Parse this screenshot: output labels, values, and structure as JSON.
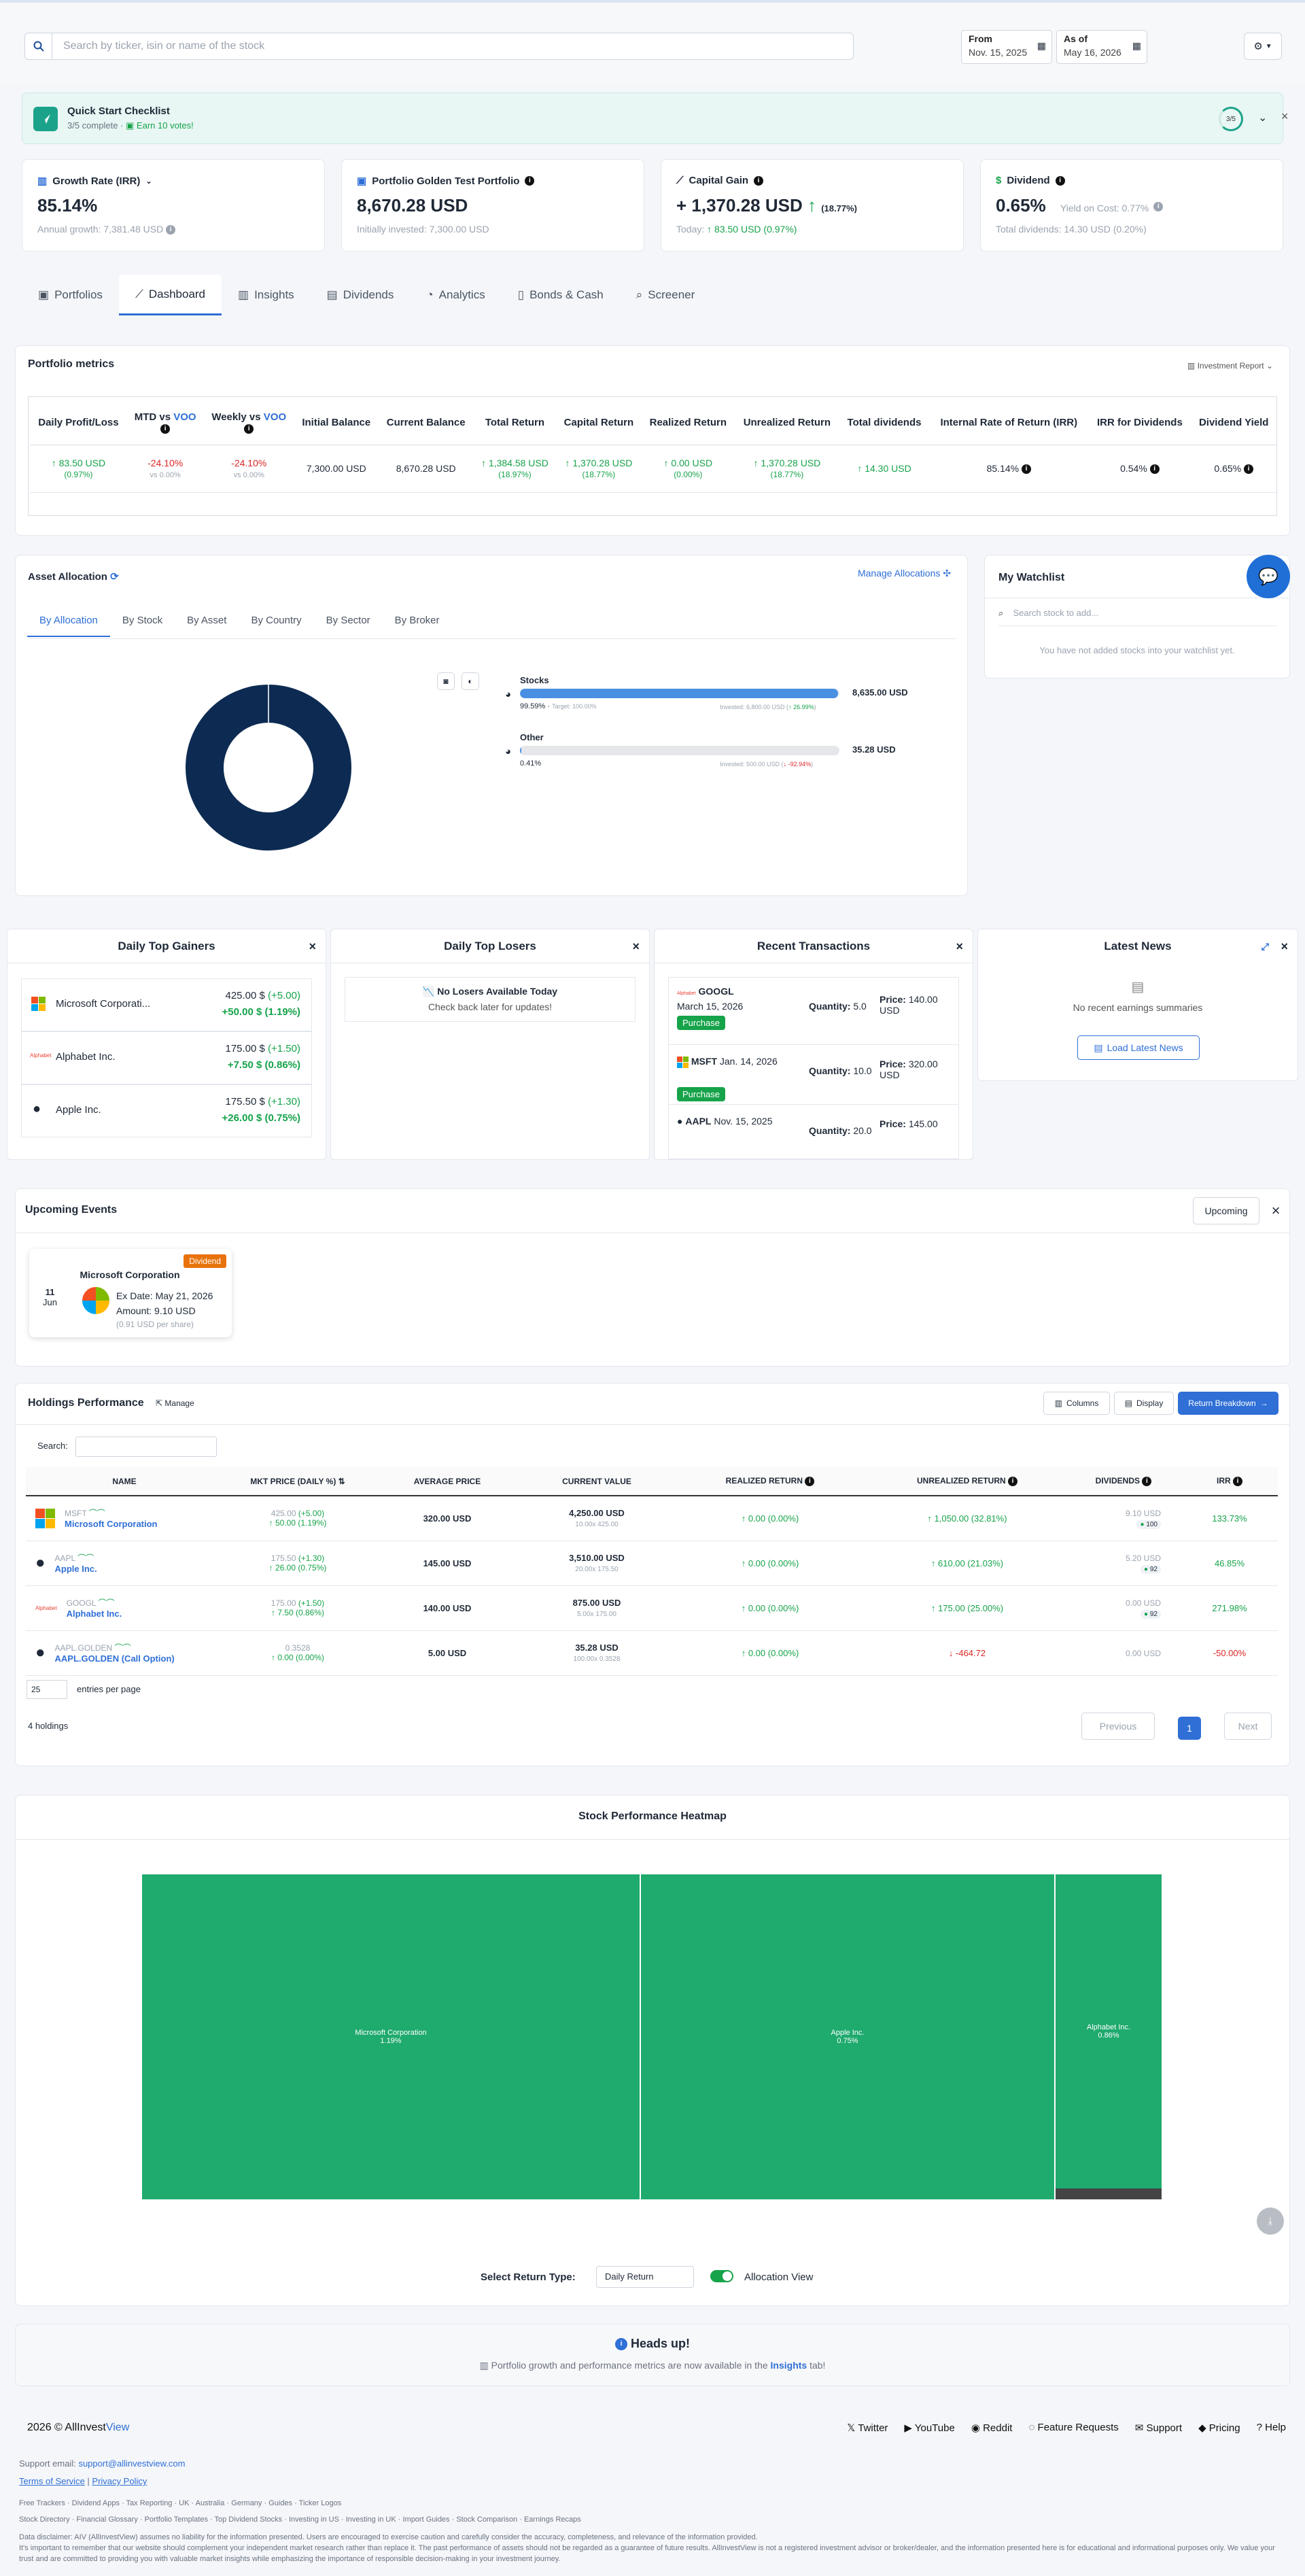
{
  "search": {
    "placeholder": "Search by ticker, isin or name of the stock"
  },
  "dates": {
    "from_label": "From",
    "from_value": "Nov. 15, 2025",
    "asof_label": "As of",
    "asof_value": "May 16, 2026"
  },
  "quickstart": {
    "title": "Quick Start Checklist",
    "complete": "3/5 complete",
    "earn": "Earn 10 votes!",
    "progress": "3/5"
  },
  "stats": [
    {
      "title": "Growth Rate (IRR)",
      "value": "85.14%",
      "sub": "Annual growth: 7,381.48 USD"
    },
    {
      "title": "Portfolio Golden Test Portfolio",
      "value": "8,670.28 USD",
      "sub": "Initially invested: 7,300.00 USD"
    },
    {
      "title": "Capital Gain",
      "value": "+ 1,370.28 USD",
      "value_pct": "(18.77%)",
      "sub_label": "Today:",
      "sub": "83.50 USD (0.97%)"
    },
    {
      "title": "Dividend",
      "value": "0.65%",
      "value_note": "Yield on Cost: 0.77%",
      "sub": "Total dividends: 14.30 USD (0.20%)"
    }
  ],
  "tabs": [
    "Portfolios",
    "Dashboard",
    "Insights",
    "Dividends",
    "Analytics",
    "Bonds & Cash",
    "Screener"
  ],
  "metrics": {
    "title": "Portfolio metrics",
    "report": "Investment Report",
    "headers": [
      "Daily Profit/Loss",
      "MTD vs VOO",
      "Weekly vs VOO",
      "Initial Balance",
      "Current Balance",
      "Total Return",
      "Capital Return",
      "Realized Return",
      "Unrealized Return",
      "Total dividends",
      "Internal Rate of Return (IRR)",
      "IRR for Dividends",
      "Dividend Yield"
    ],
    "daily": "83.50 USD",
    "daily_pct": "(0.97%)",
    "mtd": "-24.10%",
    "mtd_vs": "vs 0.00%",
    "weekly": "-24.10%",
    "weekly_vs": "vs 0.00%",
    "initial": "7,300.00 USD",
    "current": "8,670.28 USD",
    "total": "1,384.58 USD",
    "total_pct": "(18.97%)",
    "capital": "1,370.28 USD",
    "capital_pct": "(18.77%)",
    "realized": "0.00 USD",
    "realized_pct": "(0.00%)",
    "unrealized": "1,370.28 USD",
    "unrealized_pct": "(18.77%)",
    "dividends": "14.30 USD",
    "irr": "85.14%",
    "irr_div": "0.54%",
    "yield": "0.65%"
  },
  "allocation": {
    "title": "Asset Allocation",
    "manage": "Manage Allocations",
    "tabs": [
      "By Allocation",
      "By Stock",
      "By Asset",
      "By Country",
      "By Sector",
      "By Broker"
    ],
    "items": [
      {
        "name": "Stocks",
        "value": "8,635.00 USD",
        "pct": "99.59%",
        "target": "Target: 100.00%",
        "invested": "Invested: 6,800.00 USD (",
        "change": "26.99%",
        "fill": 99.59
      },
      {
        "name": "Other",
        "value": "35.28 USD",
        "pct": "0.41%",
        "invested": "Invested: 500.00 USD (",
        "change": "-92.94%",
        "fill": 0.41
      }
    ]
  },
  "watchlist": {
    "title": "My Watchlist",
    "placeholder": "Search stock to add...",
    "empty": "You have not added stocks into your watchlist yet."
  },
  "gainers": {
    "title": "Daily Top Gainers",
    "items": [
      {
        "name": "Microsoft Corporati...",
        "price": "425.00 $",
        "chg": "(+5.00)",
        "total": "+50.00 $",
        "pct": "(1.19%)"
      },
      {
        "name": "Alphabet Inc.",
        "price": "175.00 $",
        "chg": "(+1.50)",
        "total": "+7.50 $",
        "pct": "(0.86%)"
      },
      {
        "name": "Apple Inc.",
        "price": "175.50 $",
        "chg": "(+1.30)",
        "total": "+26.00 $",
        "pct": "(0.75%)"
      }
    ]
  },
  "losers": {
    "title": "Daily Top Losers",
    "empty": "No Losers Available Today",
    "sub": "Check back later for updates!"
  },
  "transactions": {
    "title": "Recent Transactions",
    "items": [
      {
        "ticker": "GOOGL",
        "date": "March 15, 2026",
        "type": "Purchase",
        "qty_label": "Quantity:",
        "qty": "5.0",
        "price_label": "Price:",
        "price": "140.00",
        "cur": "USD"
      },
      {
        "ticker": "MSFT",
        "date": "Jan. 14, 2026",
        "type": "Purchase",
        "qty_label": "Quantity:",
        "qty": "10.0",
        "price_label": "Price:",
        "price": "320.00",
        "cur": "USD"
      },
      {
        "ticker": "AAPL",
        "date": "Nov. 15, 2025",
        "qty_label": "Quantity:",
        "qty": "20.0",
        "price_label": "Price:",
        "price": "145.00"
      }
    ]
  },
  "news": {
    "title": "Latest News",
    "empty": "No recent earnings summaries",
    "button": "Load Latest News"
  },
  "events": {
    "title": "Upcoming Events",
    "filter": "Upcoming",
    "badge": "Dividend",
    "day": "11",
    "month": "Jun",
    "company": "Microsoft Corporation",
    "ex_date": "Ex Date: May 21, 2026",
    "amount": "Amount: 9.10 USD",
    "per_share": "(0.91 USD per share)"
  },
  "holdings": {
    "title": "Holdings Performance",
    "manage": "Manage",
    "columns": "Columns",
    "display": "Display",
    "breakdown": "Return Breakdown",
    "search_label": "Search:",
    "headers": [
      "NAME",
      "MKT PRICE (DAILY %)",
      "AVERAGE PRICE",
      "CURRENT VALUE",
      "REALIZED RETURN",
      "UNREALIZED RETURN",
      "DIVIDENDS",
      "IRR"
    ],
    "rows": [
      {
        "ticker": "MSFT",
        "name": "Microsoft Corporation",
        "price": "425.00",
        "price_chg": "(+5.00)",
        "daily": "50.00 (1.19%)",
        "avg": "320.00 USD",
        "value": "4,250.00 USD",
        "value_sub": "10.00x 425.00",
        "realized": "0.00 (0.00%)",
        "unrealized": "1,050.00 (32.81%)",
        "div": "9.10 USD",
        "div_badge": "100",
        "irr": "133.73%"
      },
      {
        "ticker": "AAPL",
        "name": "Apple Inc.",
        "price": "175.50",
        "price_chg": "(+1.30)",
        "daily": "26.00 (0.75%)",
        "avg": "145.00 USD",
        "value": "3,510.00 USD",
        "value_sub": "20.00x 175.50",
        "realized": "0.00 (0.00%)",
        "unrealized": "610.00 (21.03%)",
        "div": "5.20 USD",
        "div_badge": "92",
        "irr": "46.85%"
      },
      {
        "ticker": "GOOGL",
        "name": "Alphabet Inc.",
        "price": "175.00",
        "price_chg": "(+1.50)",
        "daily": "7.50 (0.86%)",
        "avg": "140.00 USD",
        "value": "875.00 USD",
        "value_sub": "5.00x 175.00",
        "realized": "0.00 (0.00%)",
        "unrealized": "175.00 (25.00%)",
        "div": "0.00 USD",
        "div_badge": "92",
        "irr": "271.98%"
      },
      {
        "ticker": "AAPL.GOLDEN",
        "name": "AAPL.GOLDEN (Call Option)",
        "price": "0.3528",
        "price_chg": "",
        "daily": "0.00 (0.00%)",
        "avg": "5.00 USD",
        "value": "35.28 USD",
        "value_sub": "100.00x 0.3528",
        "realized": "0.00 (0.00%)",
        "unrealized": "-464.72",
        "div": "0.00 USD",
        "div_badge": "",
        "irr": "-50.00%"
      }
    ],
    "entries": "25",
    "entries_label": "entries per page",
    "count": "4 holdings",
    "prev": "Previous",
    "page": "1",
    "next": "Next"
  },
  "heatmap": {
    "title": "Stock Performance Heatmap",
    "cells": [
      {
        "name": "Microsoft Corporation",
        "pct": "1.19%"
      },
      {
        "name": "Apple Inc.",
        "pct": "0.75%"
      },
      {
        "name": "Alphabet Inc.",
        "pct": "0.86%"
      }
    ],
    "return_label": "Select Return Type:",
    "return_value": "Daily Return",
    "toggle_label": "Allocation View"
  },
  "headsup": {
    "title": "Heads up!",
    "text_pre": "Portfolio growth and performance metrics are now available in the",
    "text_link": "Insights",
    "text_post": "tab!"
  },
  "footer": {
    "copyright": "2026 © AllInvest",
    "brand": "View",
    "links": [
      "Twitter",
      "YouTube",
      "Reddit",
      "Feature Requests",
      "Support",
      "Pricing",
      "Help"
    ],
    "email_label": "Support email:",
    "email": "support@allinvestview.com",
    "terms": "Terms of Service",
    "privacy": "Privacy Policy",
    "line1": "Free Trackers · Dividend Apps · Tax Reporting · UK · Australia · Germany · Guides · Ticker Logos",
    "line2": "Stock Directory · Financial Glossary · Portfolio Templates · Top Dividend Stocks · Investing in US · Investing in UK · Import Guides · Stock Comparison · Earnings Recaps",
    "disclaimer1": "Data disclaimer: AIV (AllInvestView) assumes no liability for the information presented. Users are encouraged to exercise caution and carefully consider the accuracy, completeness, and relevance of the information provided.",
    "disclaimer2": "It's important to remember that our website should complement your independent market research rather than replace it. The past performance of assets should not be regarded as a guarantee of future results. AllInvestView is not a registered investment advisor or broker/dealer, and the information presented here is for educational and informational purposes only. We value your trust and are committed to providing you with valuable market insights while emphasizing the importance of responsible decision-making in your investment journey."
  },
  "colors": {
    "accent": "#2f6fd6",
    "green": "#16a34a",
    "red": "#dc2626",
    "navy": "#0d2b52",
    "heat": "#1faa6e"
  }
}
